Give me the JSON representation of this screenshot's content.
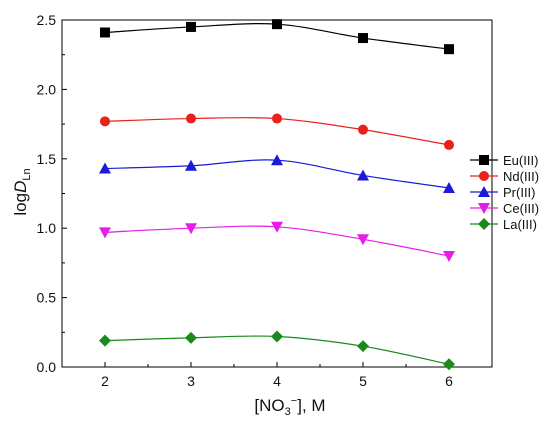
{
  "chart_data": {
    "type": "line",
    "x": [
      2,
      3,
      4,
      5,
      6
    ],
    "xlim": [
      1.5,
      6.5
    ],
    "ylim": [
      0,
      2.5
    ],
    "xticks": [
      "2",
      "3",
      "4",
      "5",
      "6"
    ],
    "yticks": [
      "0.0",
      "0.5",
      "1.0",
      "1.5",
      "2.0",
      "2.5"
    ],
    "xlabel": {
      "main": "[NO",
      "sub": "3",
      "sup": "−",
      "rest": "], M"
    },
    "ylabel": {
      "main": "log",
      "italic": "D",
      "sub": "Ln"
    },
    "grid": false,
    "legend_position": "right",
    "series": [
      {
        "name": "Eu(III)",
        "marker": "square",
        "color": "#000000",
        "values": [
          2.41,
          2.45,
          2.47,
          2.37,
          2.29
        ]
      },
      {
        "name": "Nd(III)",
        "marker": "circle",
        "color": "#e8211a",
        "values": [
          1.77,
          1.79,
          1.79,
          1.71,
          1.6
        ]
      },
      {
        "name": "Pr(III)",
        "marker": "triangle-up",
        "color": "#1a1ad8",
        "values": [
          1.43,
          1.45,
          1.49,
          1.38,
          1.29
        ]
      },
      {
        "name": "Ce(III)",
        "marker": "triangle-down",
        "color": "#e51ee5",
        "values": [
          0.97,
          1.0,
          1.01,
          0.92,
          0.8
        ]
      },
      {
        "name": "La(III)",
        "marker": "diamond",
        "color": "#1a8a1a",
        "values": [
          0.19,
          0.21,
          0.22,
          0.15,
          0.02
        ]
      }
    ]
  }
}
